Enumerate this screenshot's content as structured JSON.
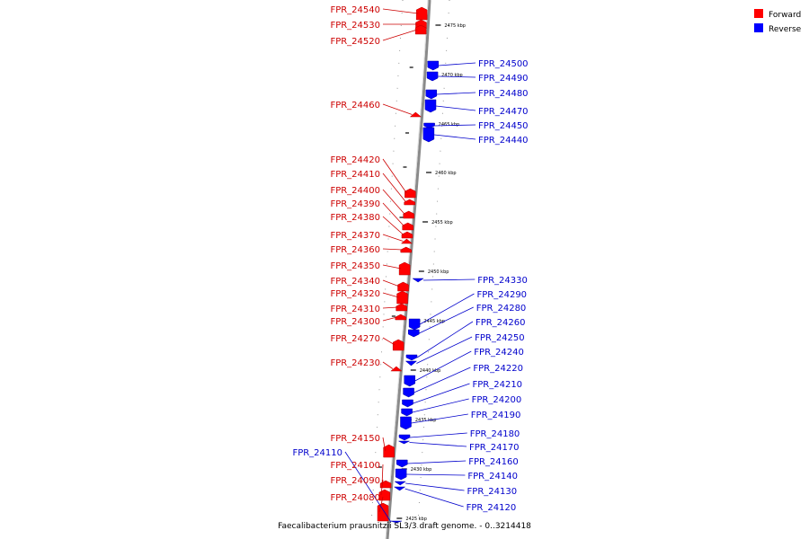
{
  "legend": {
    "forward": {
      "label": "Forward",
      "color": "#ff0000"
    },
    "reverse": {
      "label": "Reverse",
      "color": "#0000ff"
    }
  },
  "caption": "Faecalibacterium prausnitzii SL3/3 draft genome. - 0..3214418",
  "ruler": {
    "unit": "kbp",
    "ticks": [
      2475,
      2470,
      2465,
      2460,
      2455,
      2450,
      2445,
      2440,
      2435,
      2430,
      2425
    ]
  },
  "forward_genes": [
    "FPR_24540",
    "FPR_24530",
    "FPR_24520",
    "FPR_24460",
    "FPR_24420",
    "FPR_24410",
    "FPR_24400",
    "FPR_24390",
    "FPR_24380",
    "FPR_24370",
    "FPR_24360",
    "FPR_24350",
    "FPR_24340",
    "FPR_24320",
    "FPR_24310",
    "FPR_24300",
    "FPR_24270",
    "FPR_24230",
    "FPR_24150",
    "FPR_24100",
    "FPR_24090",
    "FPR_24080"
  ],
  "reverse_genes": [
    "FPR_24500",
    "FPR_24490",
    "FPR_24480",
    "FPR_24470",
    "FPR_24450",
    "FPR_24440",
    "FPR_24330",
    "FPR_24290",
    "FPR_24280",
    "FPR_24260",
    "FPR_24250",
    "FPR_24240",
    "FPR_24220",
    "FPR_24210",
    "FPR_24200",
    "FPR_24190",
    "FPR_24180",
    "FPR_24170",
    "FPR_24160",
    "FPR_24140",
    "FPR_24130",
    "FPR_24120",
    "FPR_24110"
  ]
}
